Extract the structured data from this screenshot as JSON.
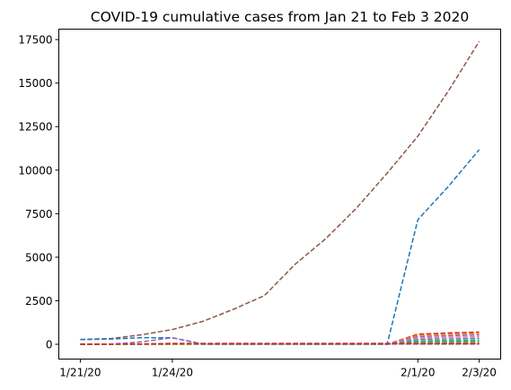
{
  "chart_data": {
    "type": "line",
    "title": "COVID-19 cumulative cases from Jan 21 to Feb 3 2020",
    "xlabel": "",
    "ylabel": "",
    "x": [
      "1/21/20",
      "1/22/20",
      "1/23/20",
      "1/24/20",
      "1/25/20",
      "1/26/20",
      "1/27/20",
      "1/28/20",
      "1/29/20",
      "1/30/20",
      "1/31/20",
      "2/1/20",
      "2/2/20",
      "2/3/20"
    ],
    "x_ticks": [
      "1/21/20",
      "1/24/20",
      "2/1/20",
      "2/3/20"
    ],
    "y_ticks": [
      0,
      2500,
      5000,
      7500,
      10000,
      12500,
      15000,
      17500
    ],
    "ylim": [
      -850,
      18100
    ],
    "grid": false,
    "legend": "none",
    "line_style": "dashed",
    "series": [
      {
        "color": "#8c564b",
        "values": [
          278,
          326,
          547,
          846,
          1320,
          2014,
          2798,
          4593,
          6065,
          7818,
          9826,
          11953,
          14557,
          17391
        ]
      },
      {
        "color": "#1f77b4",
        "values": [
          0,
          0,
          0,
          0,
          0,
          0,
          0,
          0,
          0,
          0,
          0,
          7153,
          9074,
          11177
        ]
      },
      {
        "color": "#d62728",
        "values": [
          0,
          0,
          0,
          0,
          0,
          0,
          0,
          0,
          0,
          0,
          0,
          580,
          650,
          700
        ]
      },
      {
        "color": "#ff7f0e",
        "values": [
          0,
          0,
          0,
          0,
          0,
          0,
          0,
          0,
          0,
          0,
          0,
          520,
          570,
          610
        ]
      },
      {
        "color": "#9467bd",
        "values": [
          0,
          0,
          0,
          0,
          0,
          0,
          0,
          0,
          0,
          0,
          0,
          440,
          490,
          530
        ]
      },
      {
        "color": "#e377c2",
        "values": [
          0,
          0,
          0,
          0,
          0,
          0,
          0,
          0,
          0,
          0,
          0,
          360,
          400,
          430
        ]
      },
      {
        "color": "#7f7f7f",
        "values": [
          0,
          0,
          0,
          0,
          0,
          0,
          0,
          0,
          0,
          0,
          0,
          280,
          310,
          340
        ]
      },
      {
        "color": "#17becf",
        "values": [
          0,
          0,
          0,
          0,
          0,
          0,
          0,
          0,
          0,
          0,
          0,
          200,
          225,
          250
        ]
      },
      {
        "color": "#2ca02c",
        "values": [
          0,
          0,
          0,
          0,
          0,
          0,
          0,
          0,
          0,
          0,
          0,
          140,
          160,
          170
        ]
      },
      {
        "color": "#bcbd22",
        "values": [
          0,
          0,
          0,
          0,
          0,
          0,
          0,
          0,
          0,
          0,
          0,
          80,
          90,
          100
        ]
      },
      {
        "color": "#1f77b4",
        "values": [
          270,
          300,
          380,
          370,
          10,
          10,
          10,
          10,
          10,
          10,
          10,
          10,
          10,
          10
        ]
      },
      {
        "color": "#9467bd",
        "values": [
          0,
          10,
          140,
          380,
          10,
          10,
          10,
          10,
          10,
          10,
          10,
          30,
          30,
          30
        ]
      },
      {
        "color": "#8c564b",
        "values": [
          0,
          5,
          20,
          50,
          50,
          50,
          50,
          50,
          50,
          50,
          50,
          50,
          50,
          50
        ]
      },
      {
        "color": "#d62728",
        "values": [
          10,
          10,
          20,
          30,
          30,
          30,
          30,
          30,
          30,
          30,
          30,
          30,
          30,
          30
        ]
      }
    ]
  }
}
